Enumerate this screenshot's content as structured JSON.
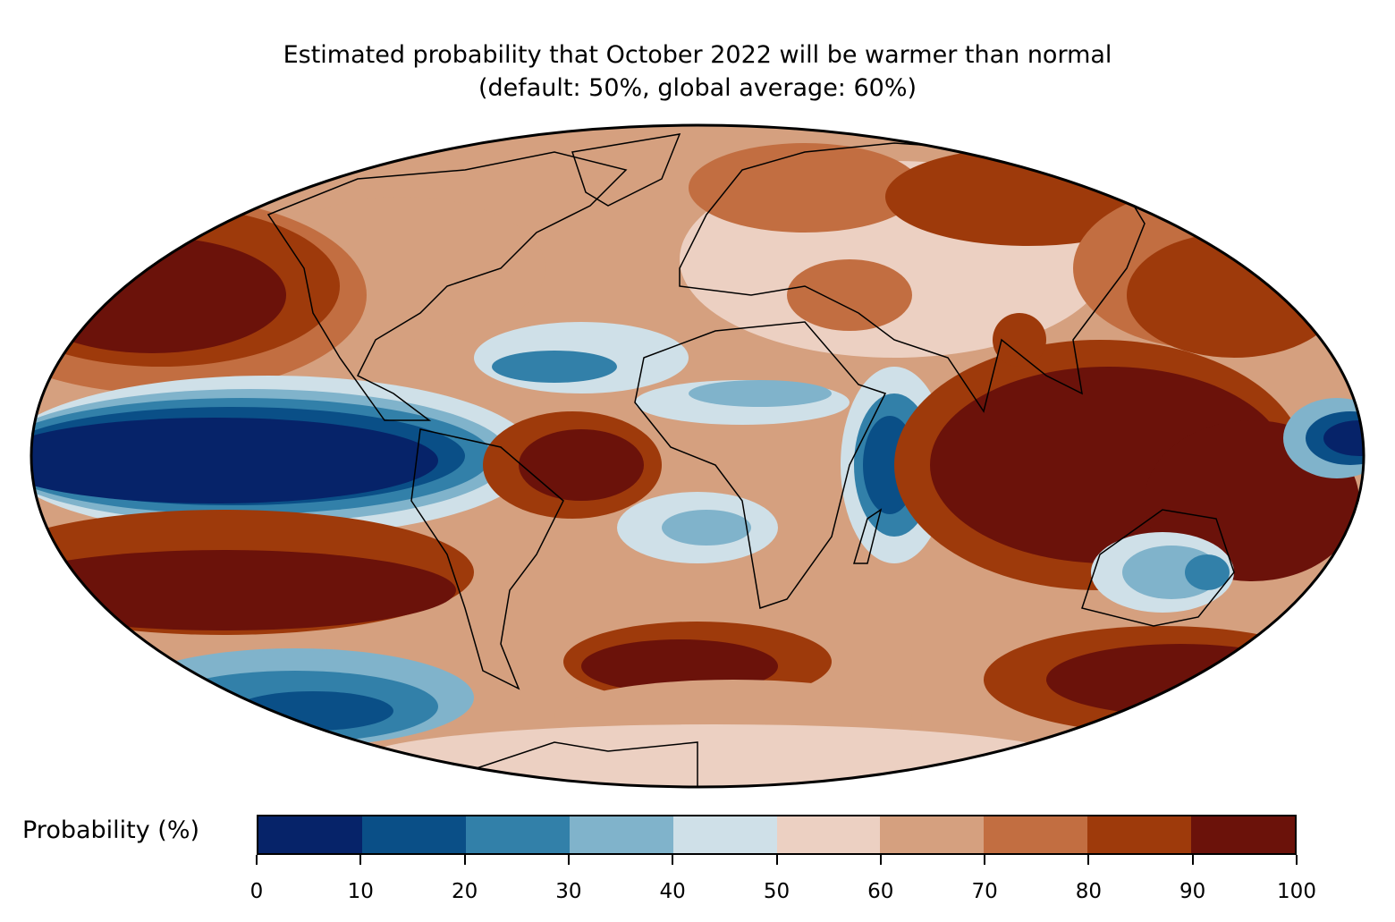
{
  "title": {
    "line1": "Estimated probability that October 2022 will be warmer than normal",
    "line2": "(default: 50%, global average: 60%)"
  },
  "map": {
    "projection": "Mollweide"
  },
  "colorbar": {
    "label": "Probability (%)",
    "ticks": [
      "0",
      "10",
      "20",
      "30",
      "40",
      "50",
      "60",
      "70",
      "80",
      "90",
      "100"
    ],
    "colors": [
      "#062369",
      "#0a4f87",
      "#3280a9",
      "#80b3cb",
      "#cfe0e8",
      "#ecd0c2",
      "#d5a07f",
      "#c26e41",
      "#9e3a0b",
      "#6b120a"
    ]
  },
  "chart_data": {
    "type": "heatmap",
    "title": "Estimated probability that October 2022 will be warmer than normal (default: 50%, global average: 60%)",
    "colorbar_label": "Probability (%)",
    "range": [
      0,
      100
    ],
    "levels": [
      0,
      10,
      20,
      30,
      40,
      50,
      60,
      70,
      80,
      90,
      100
    ],
    "default": 50,
    "global_average": 60
  }
}
